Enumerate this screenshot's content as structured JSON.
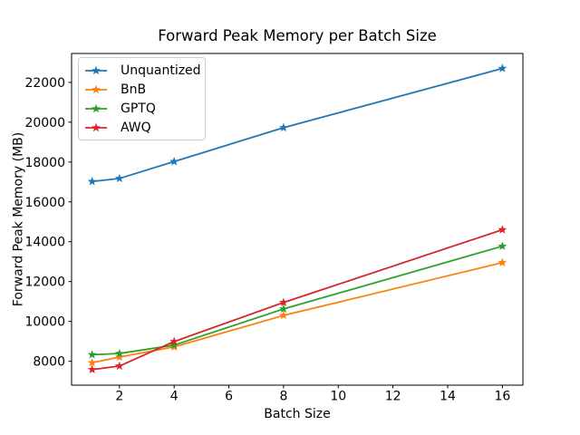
{
  "chart_data": {
    "type": "line",
    "title": "Forward Peak Memory per Batch Size",
    "xlabel": "Batch Size",
    "ylabel": "Forward Peak Memory (MB)",
    "x": [
      1,
      2,
      4,
      8,
      16
    ],
    "series": [
      {
        "name": "Unquantized",
        "color": "#1f77b4",
        "marker": "star",
        "values": [
          17025,
          17175,
          18025,
          19725,
          22700
        ]
      },
      {
        "name": "BnB",
        "color": "#ff7f0e",
        "marker": "star",
        "values": [
          7925,
          8210,
          8720,
          10300,
          12950
        ]
      },
      {
        "name": "GPTQ",
        "color": "#2ca02c",
        "marker": "star",
        "values": [
          8330,
          8390,
          8810,
          10625,
          13775
        ]
      },
      {
        "name": "AWQ",
        "color": "#d62728",
        "marker": "star",
        "values": [
          7580,
          7760,
          8990,
          10950,
          14600
        ]
      }
    ],
    "xticks": [
      2,
      4,
      6,
      8,
      10,
      12,
      14,
      16
    ],
    "yticks": [
      8000,
      10000,
      12000,
      14000,
      16000,
      18000,
      20000,
      22000
    ],
    "xlim": [
      0.25,
      16.75
    ],
    "ylim": [
      6800,
      23450
    ],
    "grid": false,
    "legend_position": "upper left"
  }
}
